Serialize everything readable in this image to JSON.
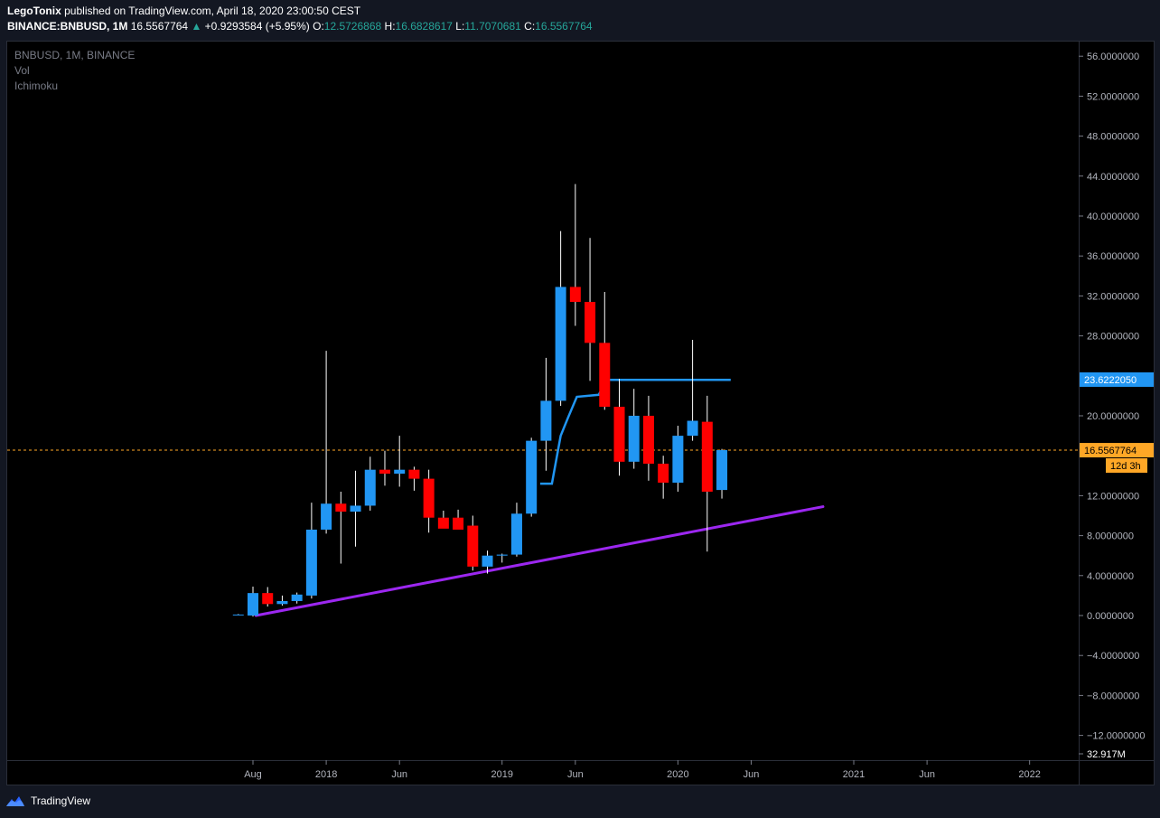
{
  "header": {
    "author": "LegoTonix",
    "published_text": "published on TradingView.com, April 18, 2020 23:00:50 CEST",
    "symbol": "BINANCE:BNBUSD, 1M",
    "last_price": "16.5567764",
    "change": "+0.9293584 (+5.95%)",
    "open_label": "O:",
    "open": "12.5726868",
    "high_label": "H:",
    "high": "16.6828617",
    "low_label": "L:",
    "low": "11.7070681",
    "close_label": "C:",
    "close": "16.5567764"
  },
  "legend": {
    "title": "BNBUSD, 1M, BINANCE",
    "vol": "Vol",
    "ichimoku": "Ichimoku"
  },
  "footer": {
    "brand": "TradingView"
  },
  "colors": {
    "up": "#2196f3",
    "down": "#ff0000",
    "wick": "#ffffff",
    "trendline": "#9c27f0",
    "ichimoku": "#2196f3",
    "price_line": "#ffa726",
    "background": "#000000"
  },
  "chart_data": {
    "type": "candlestick",
    "symbol": "BNBUSD",
    "interval": "1M",
    "exchange": "BINANCE",
    "y_axis": {
      "ylim": [
        -14,
        58
      ],
      "ticks": [
        56,
        52,
        48,
        44,
        40,
        36,
        32,
        28,
        24,
        20,
        16,
        12,
        8,
        4,
        0,
        -4,
        -8,
        -12
      ],
      "tick_labels": [
        "56.0000000",
        "52.0000000",
        "48.0000000",
        "44.0000000",
        "40.0000000",
        "36.0000000",
        "32.0000000",
        "28.0000000",
        "20.0000000",
        "12.0000000",
        "8.0000000",
        "4.0000000",
        "0.0000000",
        "−4.0000000",
        "−8.0000000",
        "−12.0000000"
      ],
      "tick_values": [
        56,
        52,
        48,
        44,
        40,
        36,
        32,
        28,
        20,
        12,
        8,
        4,
        0,
        -4,
        -8,
        -12
      ],
      "volume_label": "32.917M"
    },
    "x_axis": {
      "tick_labels": [
        "Aug",
        "2018",
        "Jun",
        "2019",
        "Jun",
        "2020",
        "Jun",
        "2021",
        "Jun",
        "2022"
      ],
      "tick_months": [
        0,
        5,
        10,
        17,
        22,
        29,
        34,
        41,
        46,
        53
      ]
    },
    "candles": [
      {
        "t": -1,
        "o": 0.1,
        "h": 0.15,
        "l": 0.05,
        "c": 0.1
      },
      {
        "t": 0,
        "o": 0.0,
        "h": 2.9,
        "l": -0.1,
        "c": 2.25
      },
      {
        "t": 1,
        "o": 2.25,
        "h": 2.85,
        "l": 0.9,
        "c": 1.15
      },
      {
        "t": 2,
        "o": 1.15,
        "h": 2.0,
        "l": 1.0,
        "c": 1.45
      },
      {
        "t": 3,
        "o": 1.45,
        "h": 2.3,
        "l": 1.2,
        "c": 2.1
      },
      {
        "t": 4,
        "o": 2.0,
        "h": 11.3,
        "l": 1.7,
        "c": 8.6
      },
      {
        "t": 5,
        "o": 8.6,
        "h": 26.5,
        "l": 8.2,
        "c": 11.2
      },
      {
        "t": 6,
        "o": 11.2,
        "h": 12.4,
        "l": 5.2,
        "c": 10.4
      },
      {
        "t": 7,
        "o": 10.4,
        "h": 14.5,
        "l": 6.9,
        "c": 11.0
      },
      {
        "t": 8,
        "o": 11.0,
        "h": 15.9,
        "l": 10.5,
        "c": 14.6
      },
      {
        "t": 9,
        "o": 14.6,
        "h": 16.5,
        "l": 13.0,
        "c": 14.2
      },
      {
        "t": 10,
        "o": 14.2,
        "h": 18.0,
        "l": 12.9,
        "c": 14.6
      },
      {
        "t": 11,
        "o": 14.6,
        "h": 14.9,
        "l": 12.5,
        "c": 13.7
      },
      {
        "t": 12,
        "o": 13.7,
        "h": 14.6,
        "l": 8.3,
        "c": 9.8
      },
      {
        "t": 13,
        "o": 9.8,
        "h": 10.5,
        "l": 9.0,
        "c": 8.7
      },
      {
        "t": 14,
        "o": 9.8,
        "h": 10.6,
        "l": 9.2,
        "c": 8.6
      },
      {
        "t": 15,
        "o": 9.0,
        "h": 10.0,
        "l": 4.5,
        "c": 4.9
      },
      {
        "t": 16,
        "o": 4.9,
        "h": 6.5,
        "l": 4.2,
        "c": 6.0
      },
      {
        "t": 17,
        "o": 6.0,
        "h": 6.2,
        "l": 5.3,
        "c": 6.1
      },
      {
        "t": 18,
        "o": 6.1,
        "h": 11.3,
        "l": 5.9,
        "c": 10.2
      },
      {
        "t": 19,
        "o": 10.2,
        "h": 17.8,
        "l": 9.9,
        "c": 17.5
      },
      {
        "t": 20,
        "o": 17.5,
        "h": 25.8,
        "l": 14.5,
        "c": 21.5
      },
      {
        "t": 21,
        "o": 21.5,
        "h": 38.5,
        "l": 21.0,
        "c": 32.9
      },
      {
        "t": 22,
        "o": 32.9,
        "h": 43.2,
        "l": 29.0,
        "c": 31.4
      },
      {
        "t": 23,
        "o": 31.4,
        "h": 37.8,
        "l": 23.5,
        "c": 27.3
      },
      {
        "t": 24,
        "o": 27.3,
        "h": 32.4,
        "l": 20.6,
        "c": 20.9
      },
      {
        "t": 25,
        "o": 20.9,
        "h": 23.7,
        "l": 14.0,
        "c": 15.4
      },
      {
        "t": 26,
        "o": 15.4,
        "h": 22.7,
        "l": 14.7,
        "c": 20.0
      },
      {
        "t": 27,
        "o": 20.0,
        "h": 22.0,
        "l": 13.5,
        "c": 15.2
      },
      {
        "t": 28,
        "o": 15.2,
        "h": 16.0,
        "l": 11.7,
        "c": 13.3
      },
      {
        "t": 29,
        "o": 13.3,
        "h": 19.0,
        "l": 12.4,
        "c": 18.0
      },
      {
        "t": 30,
        "o": 18.0,
        "h": 27.6,
        "l": 17.5,
        "c": 19.5
      },
      {
        "t": 31,
        "o": 19.4,
        "h": 22.0,
        "l": 6.4,
        "c": 12.4
      },
      {
        "t": 32,
        "o": 12.57,
        "h": 16.68,
        "l": 11.71,
        "c": 16.56
      }
    ],
    "ichimoku_line": [
      {
        "t": 19.6,
        "v": 13.2
      },
      {
        "t": 20.4,
        "v": 13.2
      },
      {
        "t": 21.0,
        "v": 18.0
      },
      {
        "t": 21.5,
        "v": 19.8
      },
      {
        "t": 22.1,
        "v": 21.9
      },
      {
        "t": 23.6,
        "v": 22.1
      },
      {
        "t": 24.1,
        "v": 23.6
      },
      {
        "t": 32.6,
        "v": 23.6
      }
    ],
    "trendline": {
      "t1": 0.2,
      "v1": 0.0,
      "t2": 38.9,
      "v2": 10.9
    },
    "last_price": {
      "value": 16.5567764,
      "label": "16.5567764",
      "countdown": "12d 3h"
    },
    "ichimoku_price": {
      "value": 23.622205,
      "label": "23.6222050"
    }
  }
}
